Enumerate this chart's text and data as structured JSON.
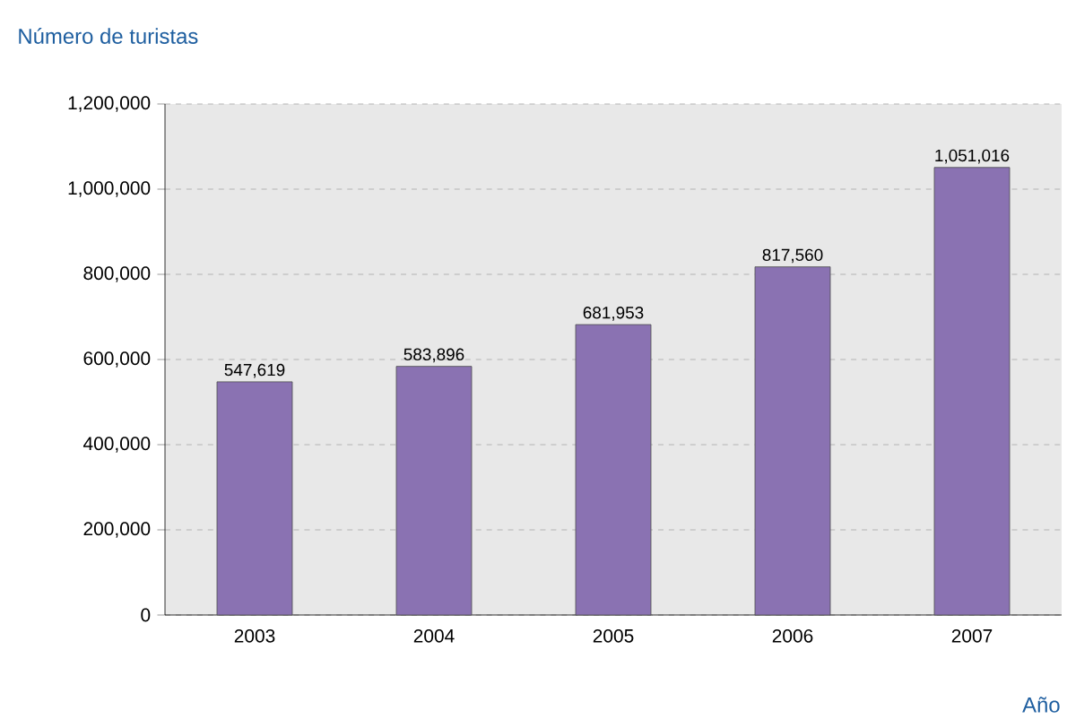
{
  "chart_data": {
    "type": "bar",
    "title": "Número de turistas",
    "xlabel": "Año",
    "categories": [
      "2003",
      "2004",
      "2005",
      "2006",
      "2007"
    ],
    "values": [
      547619,
      583896,
      681953,
      817560,
      1051016
    ],
    "value_labels": [
      "547,619",
      "583,896",
      "681,953",
      "817,560",
      "1,051,016"
    ],
    "color": "#8a72b2",
    "ylim": [
      0,
      1200000
    ],
    "yticks": [
      0,
      {
        "value": 200000,
        "label": "200,000"
      },
      {
        "value": 400000,
        "label": "400,000"
      },
      {
        "value": 600000,
        "label": "600,000"
      },
      {
        "value": 800000,
        "label": "800,000"
      },
      {
        "value": 1000000,
        "label": "1,000,000"
      },
      {
        "value": 1200000,
        "label": "1,200,000"
      }
    ],
    "grid": "y"
  }
}
